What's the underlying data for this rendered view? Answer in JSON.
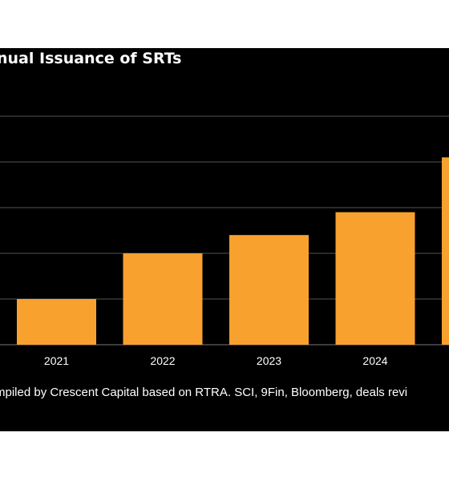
{
  "chart_data": {
    "type": "bar",
    "title": "nual Issuance of SRTs",
    "categories": [
      "2021",
      "2022",
      "2023",
      "2024",
      ""
    ],
    "values": [
      10,
      20,
      24,
      29,
      41
    ],
    "ylim": [
      0,
      50
    ],
    "grid": true,
    "bar_color": "#f9a12e",
    "grid_color": "#555555",
    "source": "mpiled by Crescent Capital based on RTRA. SCI, 9Fin, Bloomberg, deals revi"
  }
}
